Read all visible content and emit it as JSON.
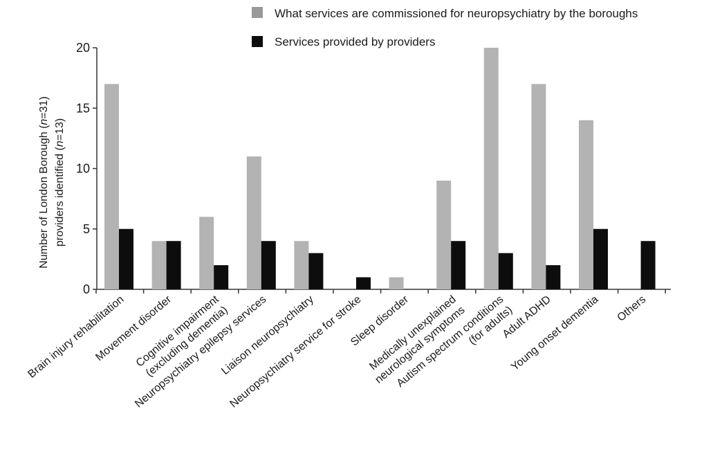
{
  "chart_data": {
    "type": "bar",
    "categories": [
      [
        "Brain injury rehabilitation"
      ],
      [
        "Movement disorder"
      ],
      [
        "Cognitive impairment",
        "(excluding dementia)"
      ],
      [
        "Neuropsychiatry epilepsy services"
      ],
      [
        "Liaison neuropsychiatry"
      ],
      [
        "Neuropsychiatry service for stroke"
      ],
      [
        "Sleep disorder"
      ],
      [
        "Medically unexplained",
        "neurological symptoms"
      ],
      [
        "Autism spectrum conditions",
        "(for adults)"
      ],
      [
        "Adult ADHD"
      ],
      [
        "Young onset dementia"
      ],
      [
        "Others"
      ]
    ],
    "series": [
      {
        "name": "What services are commissioned for neuropsychiatry by the boroughs",
        "color": "#b3b3b3",
        "values": [
          17,
          4,
          6,
          11,
          4,
          0,
          1,
          9,
          20,
          17,
          14,
          0
        ]
      },
      {
        "name": "Services provided by providers",
        "color": "#0d0d0d",
        "values": [
          5,
          4,
          2,
          4,
          3,
          1,
          0,
          4,
          3,
          2,
          5,
          4
        ]
      }
    ],
    "ylabel": [
      "Number of London Borough (n=31)",
      "providers identified (n=13)"
    ],
    "ylim": [
      0,
      20
    ],
    "yticks": [
      0,
      5,
      10,
      15,
      20
    ],
    "grid": false,
    "legend_position": "top-right"
  }
}
